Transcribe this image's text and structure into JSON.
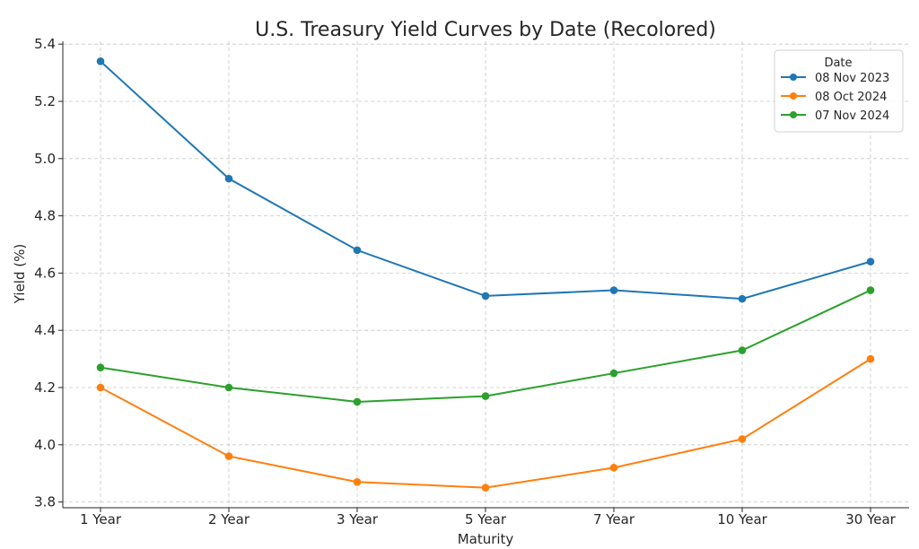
{
  "chart_data": {
    "type": "line",
    "title": "U.S. Treasury Yield Curves by Date (Recolored)",
    "xlabel": "Maturity",
    "ylabel": "Yield (%)",
    "categories": [
      "1 Year",
      "2 Year",
      "3 Year",
      "5 Year",
      "7 Year",
      "10 Year",
      "30 Year"
    ],
    "ylim": [
      3.78,
      5.41
    ],
    "yticks": [
      3.8,
      4.0,
      4.2,
      4.4,
      4.6,
      4.8,
      5.0,
      5.2,
      5.4
    ],
    "ytick_labels": [
      "3.8",
      "4.0",
      "4.2",
      "4.4",
      "4.6",
      "4.8",
      "5.0",
      "5.2",
      "5.4"
    ],
    "grid": true,
    "legend": {
      "title": "Date",
      "placement": "top-right"
    },
    "series": [
      {
        "name": "08 Nov 2023",
        "color": "#1f77b4",
        "values": [
          5.34,
          4.93,
          4.68,
          4.52,
          4.54,
          4.51,
          4.64
        ]
      },
      {
        "name": "08 Oct 2024",
        "color": "#ff7f0e",
        "values": [
          4.2,
          3.96,
          3.87,
          3.85,
          3.92,
          4.02,
          4.3
        ]
      },
      {
        "name": "07 Nov 2024",
        "color": "#2ca02c",
        "values": [
          4.27,
          4.2,
          4.15,
          4.17,
          4.25,
          4.33,
          4.54
        ]
      }
    ]
  }
}
